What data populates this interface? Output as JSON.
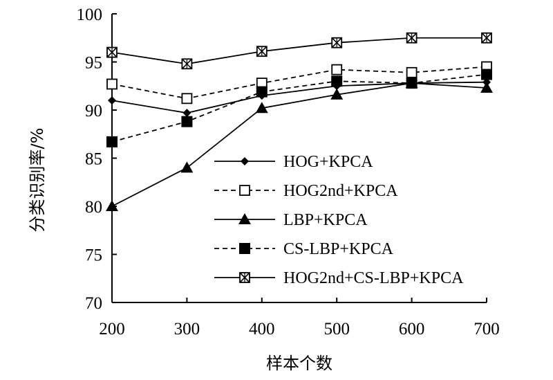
{
  "chart_data": {
    "type": "line",
    "title": "",
    "xlabel": "样本个数",
    "ylabel": "分类识别率/%",
    "x": [
      200,
      300,
      400,
      500,
      600,
      700
    ],
    "xticks": [
      "200",
      "300",
      "400",
      "500",
      "600",
      "700"
    ],
    "yticks": [
      "70",
      "75",
      "80",
      "85",
      "90",
      "95",
      "100"
    ],
    "xlim": [
      200,
      700
    ],
    "ylim": [
      70,
      100
    ],
    "grid": false,
    "legend_position": "bottom-right, inside plot",
    "series": [
      {
        "name": "HOG+KPCA",
        "values": [
          91.0,
          89.7,
          91.5,
          92.5,
          92.8,
          92.9
        ],
        "marker": "diamond",
        "dash": "solid",
        "color": "#000000"
      },
      {
        "name": "HOG2nd+KPCA",
        "values": [
          92.7,
          91.2,
          92.8,
          94.2,
          93.9,
          94.5
        ],
        "marker": "open-square",
        "dash": "dashed",
        "color": "#000000"
      },
      {
        "name": "LBP+KPCA",
        "values": [
          80.0,
          84.0,
          90.2,
          91.6,
          92.8,
          92.3
        ],
        "marker": "triangle",
        "dash": "solid",
        "color": "#000000"
      },
      {
        "name": "CS-LBP+KPCA",
        "values": [
          86.7,
          88.8,
          91.9,
          93.0,
          92.8,
          93.7
        ],
        "marker": "filled-square",
        "dash": "dashed",
        "color": "#000000"
      },
      {
        "name": "HOG2nd+CS-LBP+KPCA",
        "values": [
          96.0,
          94.8,
          96.1,
          97.0,
          97.5,
          97.5
        ],
        "marker": "x-square",
        "dash": "solid",
        "color": "#000000"
      }
    ]
  }
}
